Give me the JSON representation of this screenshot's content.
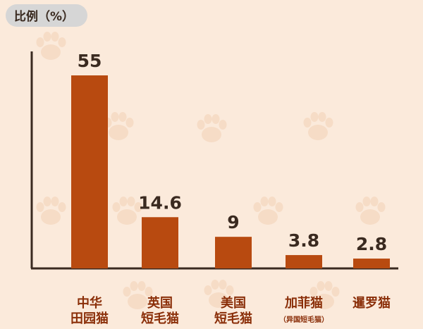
{
  "chart_data": {
    "type": "bar",
    "ylabel": "比例（%）",
    "categories": [
      {
        "lines": [
          "中华",
          "田园猫"
        ],
        "sub": ""
      },
      {
        "lines": [
          "英国",
          "短毛猫"
        ],
        "sub": ""
      },
      {
        "lines": [
          "美国",
          "短毛猫"
        ],
        "sub": ""
      },
      {
        "lines": [
          "加菲猫"
        ],
        "sub": "（异国短毛猫）"
      },
      {
        "lines": [
          "暹罗猫"
        ],
        "sub": ""
      }
    ],
    "values": [
      55,
      14.6,
      9,
      3.8,
      2.8
    ],
    "value_labels": [
      "55",
      "14.6",
      "9",
      "3.8",
      "2.8"
    ],
    "ylim": [
      0,
      55
    ],
    "grid": false,
    "legend": "none"
  },
  "colors": {
    "background": "#fbeadb",
    "bar": "#b84a10",
    "paw_watermark": "#f6dcc6",
    "axis": "#3a2a20",
    "category_text": "#8a2e08"
  }
}
